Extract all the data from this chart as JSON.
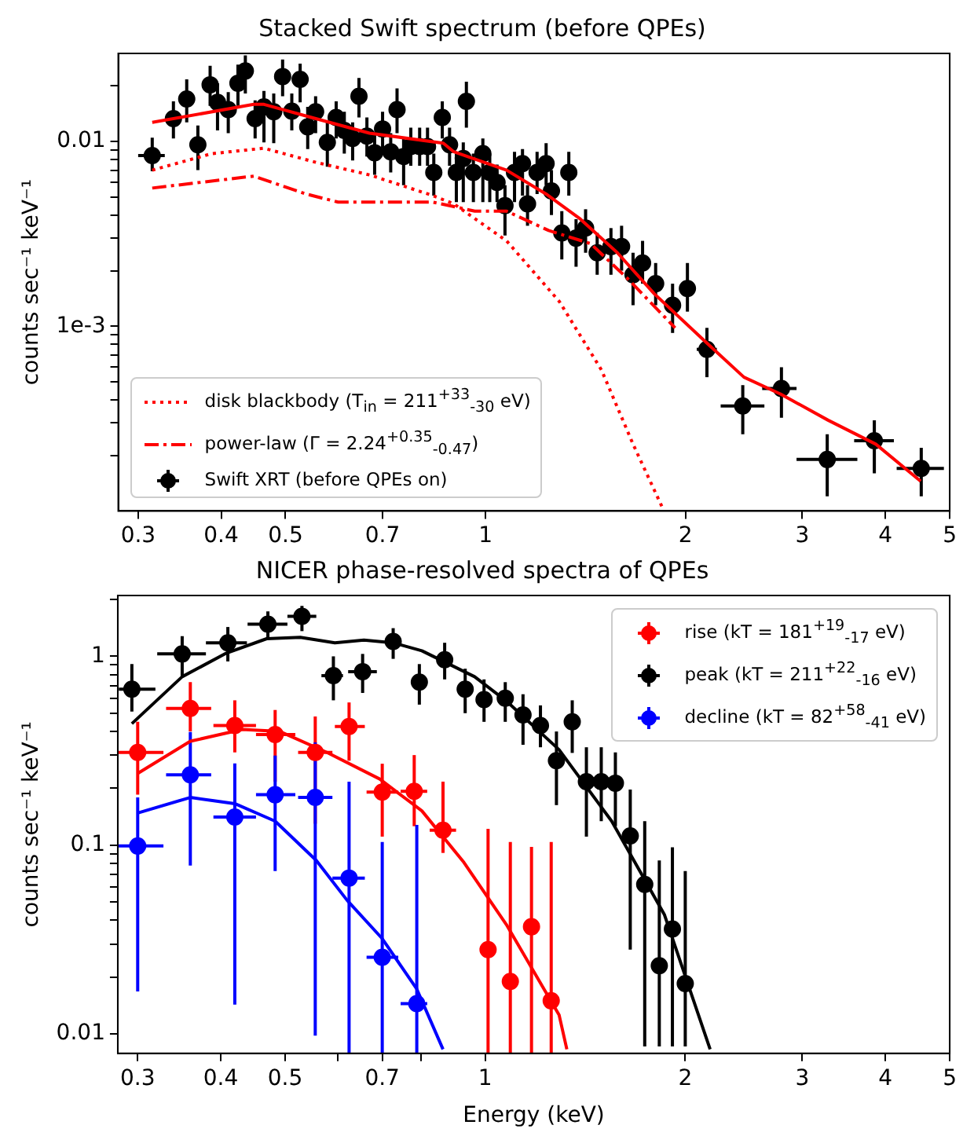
{
  "chart_data": [
    {
      "type": "scatter",
      "title": "Stacked Swift spectrum (before QPEs)",
      "ylabel": "counts sec⁻¹ keV⁻¹",
      "log": "xy",
      "legend": "bottom left",
      "xlim": [
        0.28,
        5
      ],
      "ylim": [
        0.0001,
        0.03
      ],
      "xticks": [
        0.3,
        0.4,
        0.5,
        0.7,
        1,
        2,
        3,
        4,
        5
      ],
      "yticks": [
        {
          "value": 0.0002,
          "label": null
        },
        {
          "value": 0.0003,
          "label": null
        },
        {
          "value": 0.0004,
          "label": null
        },
        {
          "value": 0.0005,
          "label": null
        },
        {
          "value": 0.0006,
          "label": null
        },
        {
          "value": 0.0007,
          "label": null
        },
        {
          "value": 0.0008,
          "label": null
        },
        {
          "value": 0.0009,
          "label": null
        },
        {
          "value": 0.001,
          "label": "1e-3"
        },
        {
          "value": 0.002,
          "label": null
        },
        {
          "value": 0.003,
          "label": null
        },
        {
          "value": 0.004,
          "label": null
        },
        {
          "value": 0.005,
          "label": null
        },
        {
          "value": 0.006,
          "label": null
        },
        {
          "value": 0.007,
          "label": null
        },
        {
          "value": 0.008,
          "label": null
        },
        {
          "value": 0.009,
          "label": null
        },
        0.01,
        {
          "value": 0.02,
          "label": null
        }
      ],
      "series": [
        {
          "name": "disk blackbody (T$_{in}$ = 211$^{+33}$$_{-30}$ eV)",
          "type": "line",
          "line_style": "dotted",
          "color": "#ff0000",
          "x": [
            0.315,
            0.387,
            0.464,
            0.557,
            0.669,
            0.833,
            0.896,
            1.076,
            1.292,
            1.495,
            1.668,
            1.845
          ],
          "values": [
            0.007,
            0.0086,
            0.0092,
            0.0077,
            0.0066,
            0.0051,
            0.0046,
            0.0029,
            0.00136,
            0.00058,
            0.00023,
            0.000105
          ]
        },
        {
          "name": "power-law (Γ = 2.24$^{+0.35}$$_{-0.47}$)",
          "type": "line",
          "line_style": "dashed",
          "color": "#ff0000",
          "x": [
            0.315,
            0.448,
            0.537,
            0.6,
            0.833,
            0.964,
            1.076,
            1.245,
            1.44,
            1.64,
            1.93
          ],
          "values": [
            0.0056,
            0.0065,
            0.0052,
            0.0047,
            0.0047,
            0.0042,
            0.0042,
            0.0033,
            0.0028,
            0.0018,
            0.00098
          ]
        },
        {
          "type": "line",
          "line_style": "solid",
          "color": "#ff0000",
          "x": [
            0.315,
            0.448,
            0.464,
            0.547,
            0.669,
            0.864,
            0.896,
            1.076,
            1.234,
            1.39,
            1.58,
            1.795,
            2.155,
            2.45,
            2.78,
            3.28,
            3.87,
            4.52
          ],
          "values": [
            0.0127,
            0.0159,
            0.0159,
            0.0135,
            0.0111,
            0.0098,
            0.0088,
            0.007,
            0.0052,
            0.0038,
            0.0025,
            0.0015,
            0.00081,
            0.00053,
            0.00043,
            0.00031,
            0.00023,
            0.000145
          ]
        },
        {
          "name": "Swift XRT (before QPEs on)",
          "type": "scatter",
          "marker": "circle",
          "color": "#000000",
          "x": [
            0.315,
            0.339,
            0.355,
            0.369,
            0.385,
            0.395,
            0.41,
            0.424,
            0.435,
            0.45,
            0.464,
            0.48,
            0.495,
            0.511,
            0.526,
            0.54,
            0.555,
            0.578,
            0.596,
            0.613,
            0.631,
            0.645,
            0.663,
            0.681,
            0.7,
            0.72,
            0.736,
            0.753,
            0.772,
            0.796,
            0.818,
            0.836,
            0.861,
            0.883,
            0.904,
            0.926,
            0.936,
            0.959,
            0.991,
            1.015,
            1.041,
            1.07,
            1.106,
            1.137,
            1.157,
            1.196,
            1.234,
            1.257,
            1.303,
            1.335,
            1.369,
            1.415,
            1.473,
            1.545,
            1.603,
            1.668,
            1.724,
            1.804,
            1.913,
            2.014,
            2.155,
            2.44,
            2.79,
            3.27,
            3.85,
            4.53
          ],
          "values": [
            0.0084,
            0.0133,
            0.017,
            0.0096,
            0.0203,
            0.0163,
            0.0149,
            0.0207,
            0.0241,
            0.0133,
            0.0154,
            0.0145,
            0.0225,
            0.0146,
            0.0217,
            0.012,
            0.0145,
            0.0099,
            0.0135,
            0.0115,
            0.0104,
            0.0176,
            0.0107,
            0.0087,
            0.0117,
            0.0088,
            0.0149,
            0.0083,
            0.0094,
            0.0094,
            0.0094,
            0.0068,
            0.0135,
            0.0096,
            0.0068,
            0.0081,
            0.0165,
            0.0068,
            0.0086,
            0.0068,
            0.006,
            0.0045,
            0.0068,
            0.0076,
            0.0046,
            0.0068,
            0.0076,
            0.0054,
            0.0032,
            0.0068,
            0.003,
            0.0034,
            0.0025,
            0.0027,
            0.0027,
            0.0019,
            0.0022,
            0.0017,
            0.0013,
            0.0016,
            0.00075,
            0.00037,
            0.00046,
            0.00019,
            0.00024,
            0.00017
          ],
          "errors": [
            [
              0.0069,
              0.0105
            ],
            [
              0.0104,
              0.0165
            ],
            [
              0.0127,
              0.0217
            ],
            [
              0.007,
              0.0122
            ],
            [
              0.0156,
              0.0257
            ],
            [
              0.0115,
              0.0207
            ],
            [
              0.0111,
              0.0185
            ],
            [
              0.0156,
              0.0261
            ],
            [
              0.0182,
              0.0293
            ],
            [
              0.0104,
              0.0167
            ],
            [
              0.0099,
              0.0188
            ],
            [
              0.0098,
              0.0182
            ],
            [
              0.0176,
              0.0278
            ],
            [
              0.0115,
              0.0182
            ],
            [
              0.0163,
              0.0264
            ],
            [
              0.0091,
              0.0154
            ],
            [
              0.0111,
              0.0176
            ],
            [
              0.0073,
              0.0127
            ],
            [
              0.0104,
              0.0165
            ],
            [
              0.0086,
              0.0145
            ],
            [
              0.0079,
              0.0127
            ],
            [
              0.0135,
              0.0221
            ],
            [
              0.0083,
              0.0135
            ],
            [
              0.0066,
              0.0111
            ],
            [
              0.0091,
              0.0145
            ],
            [
              0.0068,
              0.0111
            ],
            [
              0.0111,
              0.0194
            ],
            [
              0.0058,
              0.0104
            ],
            [
              0.0074,
              0.0119
            ],
            [
              0.0074,
              0.0119
            ],
            [
              0.0074,
              0.0119
            ],
            [
              0.0051,
              0.0086
            ],
            [
              0.0104,
              0.0165
            ],
            [
              0.0074,
              0.0119
            ],
            [
              0.0047,
              0.0086
            ],
            [
              0.0047,
              0.0099
            ],
            [
              0.0119,
              0.0211
            ],
            [
              0.0047,
              0.0086
            ],
            [
              0.0047,
              0.0104
            ],
            [
              0.0047,
              0.0086
            ],
            [
              0.0047,
              0.0075
            ],
            [
              0.0031,
              0.0058
            ],
            [
              0.0047,
              0.0088
            ],
            [
              0.0051,
              0.0091
            ],
            [
              0.0035,
              0.0058
            ],
            [
              0.0052,
              0.0088
            ],
            [
              0.0058,
              0.0098
            ],
            [
              0.004,
              0.007
            ],
            [
              0.0023,
              0.0042
            ],
            [
              0.0051,
              0.0088
            ],
            [
              0.0021,
              0.0038
            ],
            [
              0.0025,
              0.0043
            ],
            [
              0.0019,
              0.0032
            ],
            [
              0.0019,
              0.0034
            ],
            [
              0.002,
              0.0035
            ],
            [
              0.0013,
              0.0025
            ],
            [
              0.0017,
              0.0029
            ],
            [
              0.0013,
              0.0022
            ],
            [
              0.00092,
              0.0017
            ],
            [
              0.0012,
              0.0022
            ],
            [
              0.00053,
              0.00098
            ],
            [
              0.00026,
              0.00048
            ],
            [
              0.00032,
              0.0006
            ],
            [
              0.00012,
              0.00026
            ],
            [
              0.00016,
              0.00031
            ],
            [
              0.00012,
              0.00022
            ]
          ],
          "xerrors": [
            [
              0.3,
              0.329
            ],
            null,
            null,
            null,
            null,
            null,
            null,
            null,
            null,
            null,
            null,
            null,
            null,
            null,
            null,
            null,
            null,
            null,
            null,
            null,
            null,
            null,
            null,
            null,
            null,
            null,
            null,
            null,
            null,
            null,
            null,
            null,
            null,
            null,
            null,
            null,
            null,
            null,
            null,
            null,
            null,
            null,
            null,
            null,
            null,
            null,
            null,
            null,
            null,
            null,
            null,
            null,
            null,
            null,
            null,
            null,
            null,
            null,
            null,
            null,
            [
              2.08,
              2.23
            ],
            [
              2.26,
              2.63
            ],
            [
              2.61,
              2.94
            ],
            [
              2.94,
              3.63
            ],
            [
              3.59,
              4.12
            ],
            [
              4.16,
              4.9
            ]
          ]
        }
      ]
    },
    {
      "type": "scatter",
      "title": "NICER phase-resolved spectra of QPEs",
      "xlabel": "Energy (keV)",
      "ylabel": "counts sec⁻¹ keV⁻¹",
      "log": "xy",
      "legend": "top right",
      "xlim": [
        0.28,
        5
      ],
      "ylim": [
        0.0079,
        2.1
      ],
      "xticks": [
        0.3,
        0.4,
        0.5,
        {
          "value": 0.6,
          "label": null
        },
        0.7,
        {
          "value": 0.8,
          "label": null
        },
        1,
        2,
        3,
        4,
        5
      ],
      "yticks": [
        0.01,
        {
          "value": 0.02,
          "label": null
        },
        {
          "value": 0.03,
          "label": null
        },
        {
          "value": 0.04,
          "label": null
        },
        {
          "value": 0.05,
          "label": null
        },
        {
          "value": 0.06,
          "label": null
        },
        {
          "value": 0.07,
          "label": null
        },
        {
          "value": 0.08,
          "label": null
        },
        {
          "value": 0.09,
          "label": null
        },
        0.1,
        {
          "value": 0.2,
          "label": null
        },
        {
          "value": 0.3,
          "label": null
        },
        {
          "value": 0.4,
          "label": null
        },
        {
          "value": 0.5,
          "label": null
        },
        {
          "value": 0.6,
          "label": null
        },
        {
          "value": 0.7,
          "label": null
        },
        {
          "value": 0.8,
          "label": null
        },
        {
          "value": 0.9,
          "label": null
        },
        1,
        {
          "value": 2,
          "label": null
        }
      ],
      "series": [
        {
          "type": "line",
          "line_style": "solid",
          "color": "#000000",
          "x": [
            0.294,
            0.35,
            0.408,
            0.469,
            0.527,
            0.594,
            0.657,
            0.727,
            0.803,
            0.964,
            1.076,
            1.292,
            1.55,
            1.86,
            2.18
          ],
          "values": [
            0.44,
            0.78,
            1.04,
            1.24,
            1.26,
            1.18,
            1.22,
            1.18,
            1.07,
            0.78,
            0.58,
            0.32,
            0.134,
            0.043,
            0.0083
          ]
        },
        {
          "type": "line",
          "line_style": "solid",
          "color": "#ff0000",
          "x": [
            0.3,
            0.36,
            0.431,
            0.491,
            0.578,
            0.694,
            0.803,
            0.929,
            1.076,
            1.292,
            1.327
          ],
          "values": [
            0.24,
            0.355,
            0.41,
            0.4,
            0.31,
            0.224,
            0.152,
            0.081,
            0.038,
            0.0126,
            0.0083
          ]
        },
        {
          "type": "line",
          "line_style": "solid",
          "color": "#0000ff",
          "x": [
            0.3,
            0.36,
            0.42,
            0.483,
            0.557,
            0.62,
            0.7,
            0.789,
            0.864
          ],
          "values": [
            0.148,
            0.179,
            0.166,
            0.134,
            0.083,
            0.051,
            0.032,
            0.0173,
            0.0083
          ]
        },
        {
          "name": "rise (kT = 181$^{+19}$$_{-17}$ eV)",
          "type": "scatter",
          "marker": "circle",
          "color": "#ff0000",
          "x": [
            0.3,
            0.36,
            0.42,
            0.483,
            0.555,
            0.624,
            0.7,
            0.782,
            0.864,
            1.01,
            1.091,
            1.174,
            1.257
          ],
          "values": [
            0.31,
            0.53,
            0.43,
            0.385,
            0.31,
            0.425,
            0.191,
            0.193,
            0.12,
            0.028,
            0.019,
            0.037,
            0.015
          ],
          "errors": [
            [
              0.185,
              0.45
            ],
            [
              0.4,
              0.73
            ],
            [
              0.31,
              0.585
            ],
            [
              0.217,
              0.52
            ],
            [
              0.13,
              0.48
            ],
            [
              0.28,
              0.57
            ],
            [
              0.111,
              0.27
            ],
            [
              0.126,
              0.3
            ],
            [
              0.091,
              0.217
            ],
            [
              0.0079,
              0.122
            ],
            [
              0.0079,
              0.104
            ],
            [
              0.0079,
              0.098
            ],
            [
              0.0079,
              0.104
            ]
          ],
          "xerrors": [
            [
              0.28,
              0.328
            ],
            [
              0.331,
              0.387
            ],
            [
              0.39,
              0.452
            ],
            [
              0.452,
              0.518
            ],
            [
              0.523,
              0.589
            ],
            [
              0.594,
              0.659
            ],
            [
              0.663,
              0.74
            ],
            [
              0.746,
              0.818
            ],
            [
              0.825,
              0.904
            ],
            null,
            null,
            null,
            null
          ]
        },
        {
          "name": "peak (kT = 211$^{+22}$$_{-16}$ eV)",
          "type": "scatter",
          "marker": "circle",
          "color": "#000000",
          "x": [
            0.294,
            0.35,
            0.41,
            0.471,
            0.53,
            0.591,
            0.654,
            0.727,
            0.796,
            0.869,
            0.933,
            0.996,
            1.072,
            1.14,
            1.211,
            1.28,
            1.352,
            1.42,
            1.495,
            1.57,
            1.653,
            1.738,
            1.828,
            1.913,
            2.0
          ],
          "values": [
            0.67,
            1.03,
            1.18,
            1.48,
            1.63,
            0.79,
            0.83,
            1.2,
            0.73,
            0.96,
            0.67,
            0.59,
            0.6,
            0.49,
            0.43,
            0.28,
            0.45,
            0.217,
            0.217,
            0.213,
            0.112,
            0.062,
            0.023,
            0.036,
            0.0185
          ],
          "errors": [
            [
              0.51,
              0.91
            ],
            [
              0.78,
              1.28
            ],
            [
              0.94,
              1.43
            ],
            [
              1.24,
              1.73
            ],
            [
              1.36,
              1.85
            ],
            [
              0.585,
              1.0
            ],
            [
              0.64,
              1.03
            ],
            [
              0.97,
              1.41
            ],
            [
              0.555,
              0.91
            ],
            [
              0.755,
              1.18
            ],
            [
              0.5,
              0.86
            ],
            [
              0.45,
              0.755
            ],
            [
              0.45,
              0.73
            ],
            [
              0.34,
              0.63
            ],
            [
              0.33,
              0.55
            ],
            [
              0.163,
              0.4
            ],
            [
              0.308,
              0.585
            ],
            [
              0.111,
              0.33
            ],
            [
              0.134,
              0.33
            ],
            [
              0.126,
              0.31
            ],
            [
              0.028,
              0.197
            ],
            [
              0.0086,
              0.134
            ],
            [
              0.0086,
              0.083
            ],
            [
              0.0086,
              0.0975
            ],
            [
              0.0086,
              0.073
            ]
          ],
          "xerrors": [
            [
              0.281,
              0.319
            ],
            [
              0.321,
              0.38
            ],
            [
              0.38,
              0.438
            ],
            [
              0.439,
              0.504
            ],
            [
              0.504,
              0.557
            ],
            [
              0.567,
              0.611
            ],
            [
              0.622,
              0.687
            ],
            null,
            null,
            null,
            null,
            null,
            null,
            null,
            null,
            null,
            null,
            null,
            null,
            null,
            null,
            null,
            null,
            null,
            null
          ]
        },
        {
          "name": "decline (kT = 82$^{+58}$$_{-41}$ eV)",
          "type": "scatter",
          "marker": "circle",
          "color": "#0000ff",
          "x": [
            0.3,
            0.36,
            0.42,
            0.483,
            0.555,
            0.624,
            0.7,
            0.789
          ],
          "values": [
            0.099,
            0.236,
            0.141,
            0.185,
            0.179,
            0.067,
            0.0255,
            0.0145
          ],
          "errors": [
            [
              0.0168,
              0.179
            ],
            [
              0.078,
              0.398
            ],
            [
              0.0143,
              0.271
            ],
            [
              0.073,
              0.298
            ],
            [
              0.0098,
              0.35
            ],
            [
              0.0079,
              0.217
            ],
            [
              0.0079,
              0.104
            ],
            [
              0.0079,
              0.128
            ]
          ],
          "xerrors": [
            [
              0.28,
              0.328
            ],
            [
              0.331,
              0.387
            ],
            [
              0.39,
              0.452
            ],
            [
              0.452,
              0.518
            ],
            [
              0.523,
              0.589
            ],
            [
              0.589,
              0.659
            ],
            [
              0.663,
              0.74
            ],
            [
              0.746,
              0.818
            ]
          ]
        }
      ]
    }
  ]
}
